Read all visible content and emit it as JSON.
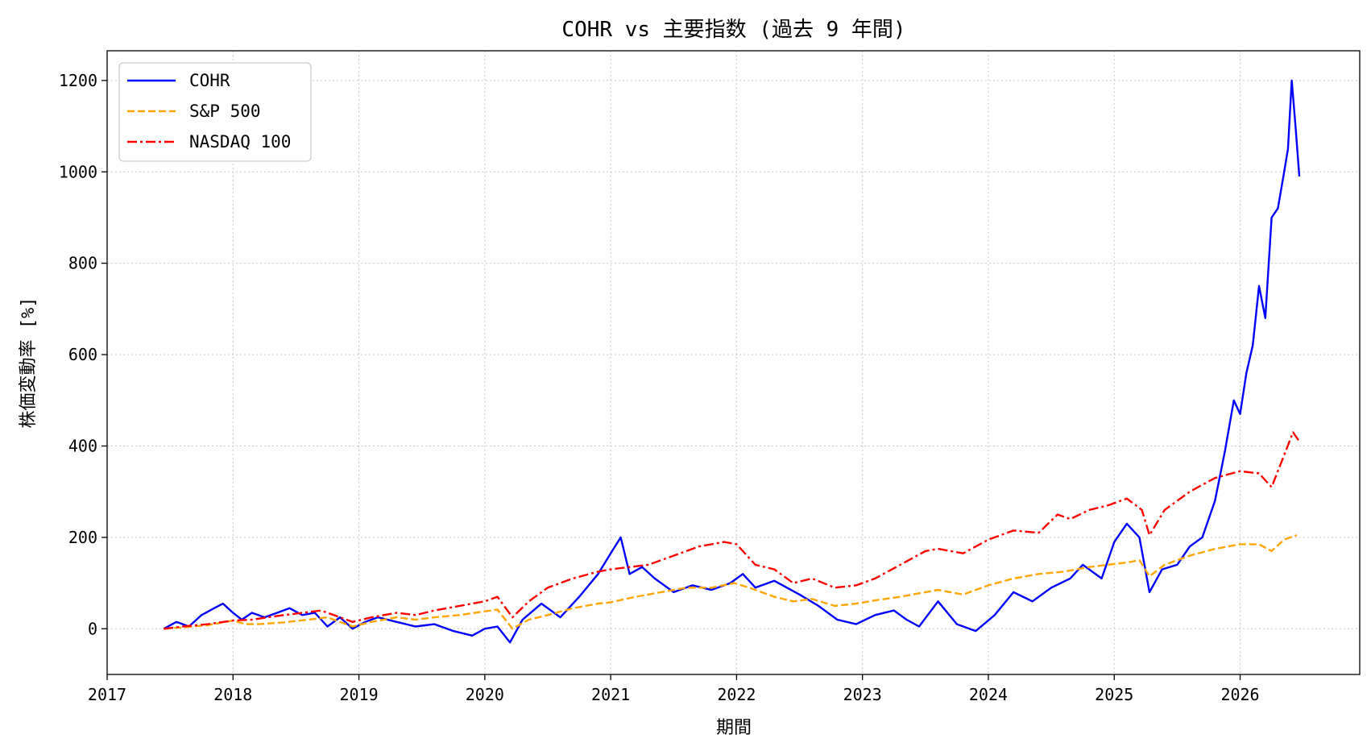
{
  "chart_data": {
    "type": "line",
    "title": "COHR vs 主要指数 (過去 9 年間)",
    "xlabel": "期間",
    "ylabel": "株価変動率 [%]",
    "xlim": [
      2017.0,
      2026.95
    ],
    "ylim": [
      -100,
      1265
    ],
    "x_ticks": [
      2017,
      2018,
      2019,
      2020,
      2021,
      2022,
      2023,
      2024,
      2025,
      2026
    ],
    "y_ticks": [
      0,
      200,
      400,
      600,
      800,
      1000,
      1200
    ],
    "grid": true,
    "legend_position": "top-left",
    "series": [
      {
        "name": "COHR",
        "color": "#0000ff",
        "dash": "solid",
        "x": [
          2017.45,
          2017.55,
          2017.65,
          2017.75,
          2017.85,
          2017.92,
          2018.0,
          2018.07,
          2018.15,
          2018.25,
          2018.35,
          2018.45,
          2018.55,
          2018.65,
          2018.75,
          2018.85,
          2018.95,
          2019.05,
          2019.15,
          2019.3,
          2019.45,
          2019.6,
          2019.75,
          2019.9,
          2020.0,
          2020.1,
          2020.2,
          2020.3,
          2020.45,
          2020.6,
          2020.75,
          2020.9,
          2021.0,
          2021.08,
          2021.15,
          2021.25,
          2021.35,
          2021.5,
          2021.65,
          2021.8,
          2021.95,
          2022.05,
          2022.15,
          2022.3,
          2022.5,
          2022.65,
          2022.8,
          2022.95,
          2023.1,
          2023.25,
          2023.35,
          2023.45,
          2023.6,
          2023.75,
          2023.9,
          2024.05,
          2024.2,
          2024.35,
          2024.5,
          2024.65,
          2024.75,
          2024.9,
          2025.0,
          2025.1,
          2025.2,
          2025.28,
          2025.38,
          2025.5,
          2025.6,
          2025.7,
          2025.8,
          2025.88,
          2025.95,
          2026.0,
          2026.05,
          2026.1,
          2026.15,
          2026.2,
          2026.25,
          2026.3,
          2026.35,
          2026.38,
          2026.41,
          2026.44,
          2026.47
        ],
        "y": [
          0,
          15,
          5,
          30,
          45,
          55,
          35,
          20,
          35,
          25,
          35,
          45,
          30,
          35,
          5,
          25,
          0,
          15,
          25,
          15,
          5,
          10,
          -5,
          -15,
          0,
          5,
          -30,
          20,
          55,
          25,
          70,
          120,
          165,
          200,
          120,
          135,
          110,
          80,
          95,
          85,
          100,
          120,
          90,
          105,
          75,
          50,
          20,
          10,
          30,
          40,
          20,
          5,
          60,
          10,
          -5,
          30,
          80,
          60,
          90,
          110,
          140,
          110,
          190,
          230,
          200,
          80,
          130,
          140,
          180,
          200,
          280,
          390,
          500,
          470,
          560,
          620,
          750,
          680,
          900,
          920,
          1000,
          1050,
          1200,
          1100,
          990
        ]
      },
      {
        "name": "S&P 500",
        "color": "#ffa500",
        "dash": "dashed",
        "x": [
          2017.45,
          2017.6,
          2017.8,
          2018.0,
          2018.1,
          2018.2,
          2018.4,
          2018.6,
          2018.75,
          2018.95,
          2019.1,
          2019.3,
          2019.45,
          2019.6,
          2019.8,
          2020.0,
          2020.1,
          2020.22,
          2020.35,
          2020.5,
          2020.7,
          2020.9,
          2021.0,
          2021.2,
          2021.4,
          2021.6,
          2021.8,
          2021.98,
          2022.1,
          2022.3,
          2022.45,
          2022.6,
          2022.78,
          2022.95,
          2023.1,
          2023.3,
          2023.5,
          2023.6,
          2023.8,
          2024.0,
          2024.2,
          2024.4,
          2024.6,
          2024.8,
          2024.95,
          2025.1,
          2025.2,
          2025.28,
          2025.4,
          2025.6,
          2025.8,
          2026.0,
          2026.15,
          2026.25,
          2026.35,
          2026.45
        ],
        "y": [
          0,
          3,
          8,
          18,
          10,
          10,
          14,
          20,
          25,
          5,
          15,
          25,
          20,
          25,
          30,
          38,
          42,
          0,
          20,
          30,
          45,
          55,
          58,
          70,
          80,
          90,
          90,
          100,
          90,
          70,
          60,
          65,
          50,
          55,
          62,
          70,
          80,
          85,
          75,
          95,
          110,
          120,
          125,
          135,
          140,
          145,
          150,
          115,
          140,
          160,
          175,
          185,
          185,
          170,
          195,
          205
        ]
      },
      {
        "name": "NASDAQ 100",
        "color": "#ff0000",
        "dash": "dashdot",
        "x": [
          2017.45,
          2017.6,
          2017.8,
          2018.0,
          2018.15,
          2018.35,
          2018.55,
          2018.7,
          2018.85,
          2018.95,
          2019.1,
          2019.3,
          2019.45,
          2019.6,
          2019.8,
          2020.0,
          2020.1,
          2020.22,
          2020.35,
          2020.5,
          2020.7,
          2020.9,
          2021.0,
          2021.15,
          2021.3,
          2021.5,
          2021.7,
          2021.9,
          2022.0,
          2022.15,
          2022.3,
          2022.45,
          2022.6,
          2022.78,
          2022.95,
          2023.1,
          2023.3,
          2023.5,
          2023.6,
          2023.8,
          2024.0,
          2024.2,
          2024.4,
          2024.55,
          2024.65,
          2024.8,
          2024.95,
          2025.1,
          2025.22,
          2025.28,
          2025.4,
          2025.6,
          2025.8,
          2026.0,
          2026.15,
          2026.25,
          2026.35,
          2026.42,
          2026.47
        ],
        "y": [
          0,
          5,
          10,
          18,
          20,
          28,
          35,
          40,
          25,
          15,
          25,
          35,
          30,
          40,
          50,
          60,
          70,
          25,
          60,
          90,
          110,
          125,
          130,
          135,
          140,
          160,
          180,
          190,
          185,
          140,
          130,
          100,
          110,
          90,
          95,
          110,
          140,
          170,
          175,
          165,
          195,
          215,
          210,
          250,
          240,
          260,
          270,
          285,
          260,
          205,
          260,
          300,
          330,
          345,
          340,
          310,
          380,
          430,
          410
        ]
      }
    ]
  }
}
